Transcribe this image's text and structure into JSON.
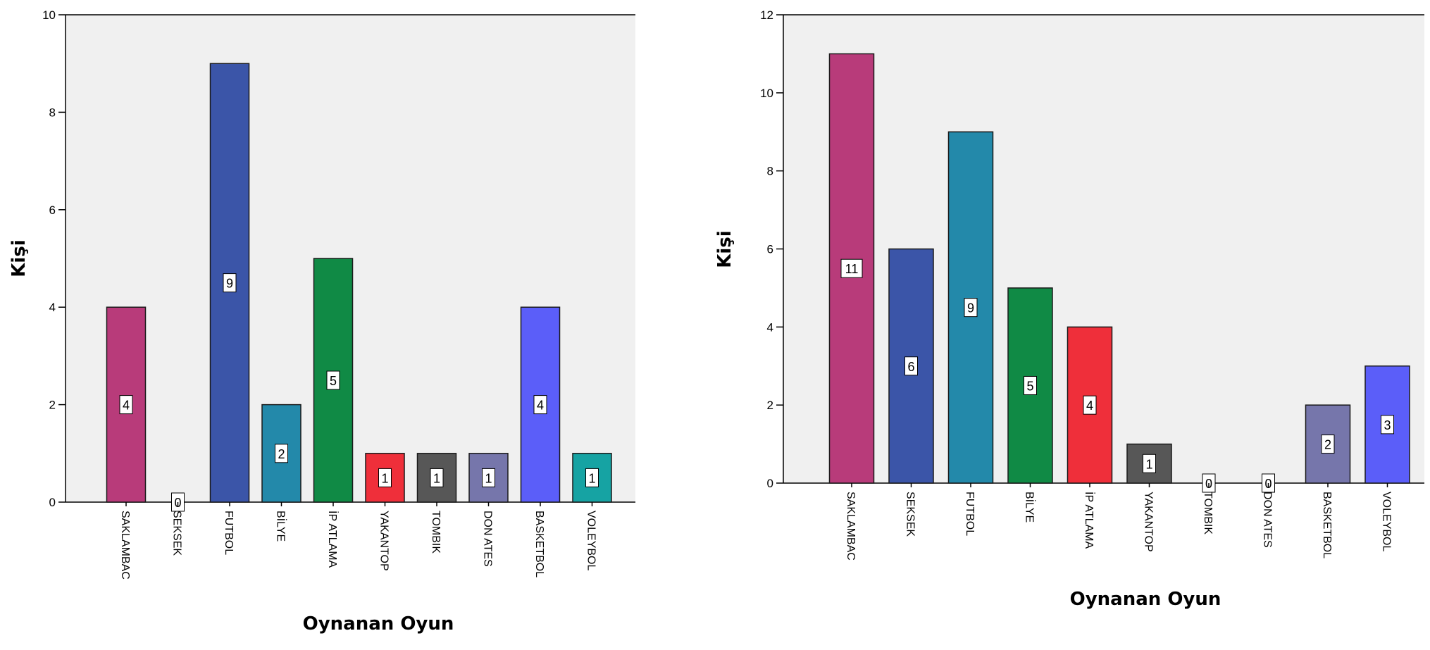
{
  "chart_data": [
    {
      "type": "bar",
      "categories": [
        "SAKLAMBAC",
        "SEKSEK",
        "FUTBOL",
        "BİLYE",
        "İP ATLAMA",
        "YAKANTOP",
        "TOMBIK",
        "DON ATES",
        "BASKETBOL",
        "VOLEYBOL"
      ],
      "values": [
        4,
        0,
        9,
        2,
        5,
        1,
        1,
        1,
        4,
        1
      ],
      "colors": [
        "#b83b7a",
        "#3b55a8",
        "#3b55a8",
        "#2389aa",
        "#108a45",
        "#ef2f3a",
        "#575757",
        "#7676ab",
        "#5b5ef9",
        "#16a3a3"
      ],
      "data_labels": [
        "4",
        "0",
        "9",
        "2",
        "5",
        "1",
        "1",
        "1",
        "4",
        "1"
      ],
      "y_ticks": [
        "0",
        "2",
        "4",
        "6",
        "8",
        "10"
      ],
      "ylim": [
        0,
        10
      ],
      "xlabel": "Oynanan Oyun",
      "ylabel": "Kişi",
      "title": "",
      "grid": false,
      "background": "#f0f0f0"
    },
    {
      "type": "bar",
      "categories": [
        "SAKLAMBAC",
        "SEKSEK",
        "FUTBOL",
        "BİLYE",
        "İP ATLAMA",
        "YAKANTOP",
        "TOMBIK",
        "DON ATES",
        "BASKETBOL",
        "VOLEYBOL"
      ],
      "values": [
        11,
        6,
        9,
        5,
        4,
        1,
        0,
        0,
        2,
        3
      ],
      "colors": [
        "#b83b7a",
        "#3b55a8",
        "#2389aa",
        "#108a45",
        "#ef2f3a",
        "#575757",
        "#575757",
        "#575757",
        "#7676ab",
        "#5b5ef9"
      ],
      "data_labels": [
        "11",
        "6",
        "9",
        "5",
        "4",
        "1",
        "0",
        "0",
        "2",
        "3"
      ],
      "y_ticks": [
        "0",
        "2",
        "4",
        "6",
        "8",
        "10",
        "12"
      ],
      "ylim": [
        0,
        12
      ],
      "xlabel": "Oynanan Oyun",
      "ylabel": "Kişi",
      "title": "",
      "grid": false,
      "background": "#f0f0f0"
    }
  ]
}
